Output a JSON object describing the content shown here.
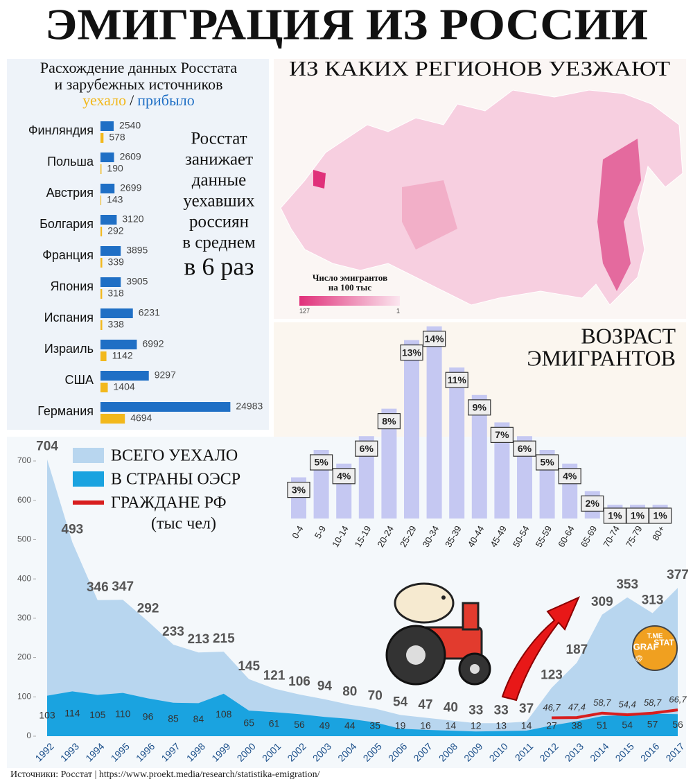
{
  "title": "ЭМИГРАЦИЯ ИЗ РОССИИ",
  "source": "Источники: Росстат | https://www.proekt.media/research/statistika-emigration/",
  "logo": [
    "T.ME",
    "GRAF",
    "STAT",
    "@"
  ],
  "chart_data": [
    {
      "type": "hbar",
      "title": [
        "Расхождение данных Росстата",
        "и зарубежных источников"
      ],
      "legend_separator": "/",
      "categories": [
        "Финляндия",
        "Польша",
        "Австрия",
        "Болгария",
        "Франция",
        "Япония",
        "Испания",
        "Израиль",
        "США",
        "Германия"
      ],
      "series": [
        {
          "name": "прибыло",
          "color": "#1f6fc5",
          "values": [
            2540,
            2609,
            2699,
            3120,
            3895,
            3905,
            6231,
            6992,
            9297,
            24983
          ]
        },
        {
          "name": "уехало",
          "color": "#f2b81c",
          "values": [
            578,
            190,
            143,
            292,
            339,
            318,
            338,
            1142,
            1404,
            4694
          ]
        }
      ],
      "annotation": [
        "Росстат",
        "занижает",
        "данные",
        "уехавших",
        "россиян",
        "в среднем",
        "в 6 раз"
      ]
    },
    {
      "type": "map",
      "title": "ИЗ КАКИХ РЕГИОНОВ УЕЗЖАЮТ",
      "legend_title": [
        "Число эмигрантов",
        "на 100 тыс"
      ],
      "legend_min": 1,
      "legend_max": 127,
      "colors": [
        "#e0307a",
        "#fbe6ef"
      ]
    },
    {
      "type": "bar",
      "title": [
        "ВОЗРАСТ",
        "ЭМИГРАНТОВ"
      ],
      "categories": [
        "0-4",
        "5-9",
        "10-14",
        "15-19",
        "20-24",
        "25-29",
        "30-34",
        "35-39",
        "40-44",
        "45-49",
        "50-54",
        "55-59",
        "60-64",
        "65-69",
        "70-74",
        "75-79",
        "80+"
      ],
      "values": [
        3,
        5,
        4,
        6,
        8,
        13,
        14,
        11,
        9,
        7,
        6,
        5,
        4,
        2,
        1,
        1,
        1
      ],
      "value_labels": [
        "3%",
        "5%",
        "4%",
        "6%",
        "8%",
        "13%",
        "14%",
        "11%",
        "9%",
        "7%",
        "6%",
        "5%",
        "4%",
        "2%",
        "1%",
        "1%",
        "1%"
      ],
      "color": "#c5c8f2"
    },
    {
      "type": "area",
      "note": "(тыс чел)",
      "x": [
        1992,
        1993,
        1994,
        1995,
        1996,
        1997,
        1998,
        1999,
        2000,
        2001,
        2002,
        2003,
        2004,
        2005,
        2006,
        2007,
        2008,
        2009,
        2010,
        2011,
        2012,
        2013,
        2014,
        2015,
        2016,
        2017
      ],
      "ylim": [
        0,
        700
      ],
      "yticks": [
        0,
        100,
        200,
        300,
        400,
        500,
        600,
        700
      ],
      "series": [
        {
          "name": "ВСЕГО УЕХАЛО",
          "color": "#b8d6ef",
          "values": [
            704,
            493,
            346,
            347,
            292,
            233,
            213,
            215,
            145,
            121,
            106,
            94,
            80,
            70,
            54,
            47,
            40,
            33,
            33,
            37,
            123,
            187,
            309,
            353,
            313,
            377
          ]
        },
        {
          "name": "В СТРАНЫ ОЭСР",
          "color": "#1aa3e0",
          "values": [
            103,
            114,
            105,
            110,
            96,
            85,
            84,
            108,
            65,
            61,
            56,
            49,
            44,
            35,
            19,
            16,
            14,
            12,
            13,
            14,
            27,
            38,
            51,
            54,
            57,
            56
          ]
        },
        {
          "name": "ГРАЖДАНЕ РФ",
          "color": "#d81e1e",
          "values": [
            null,
            null,
            null,
            null,
            null,
            null,
            null,
            null,
            null,
            null,
            null,
            null,
            null,
            null,
            null,
            null,
            null,
            null,
            null,
            null,
            46.7,
            47.4,
            58.7,
            54.4,
            58.7,
            66.7
          ],
          "value_labels": [
            null,
            null,
            null,
            null,
            null,
            null,
            null,
            null,
            null,
            null,
            null,
            null,
            null,
            null,
            null,
            null,
            null,
            null,
            null,
            null,
            "46,7",
            "47,4",
            "58,7",
            "54,4",
            "58,7",
            "66,7"
          ]
        }
      ]
    }
  ]
}
